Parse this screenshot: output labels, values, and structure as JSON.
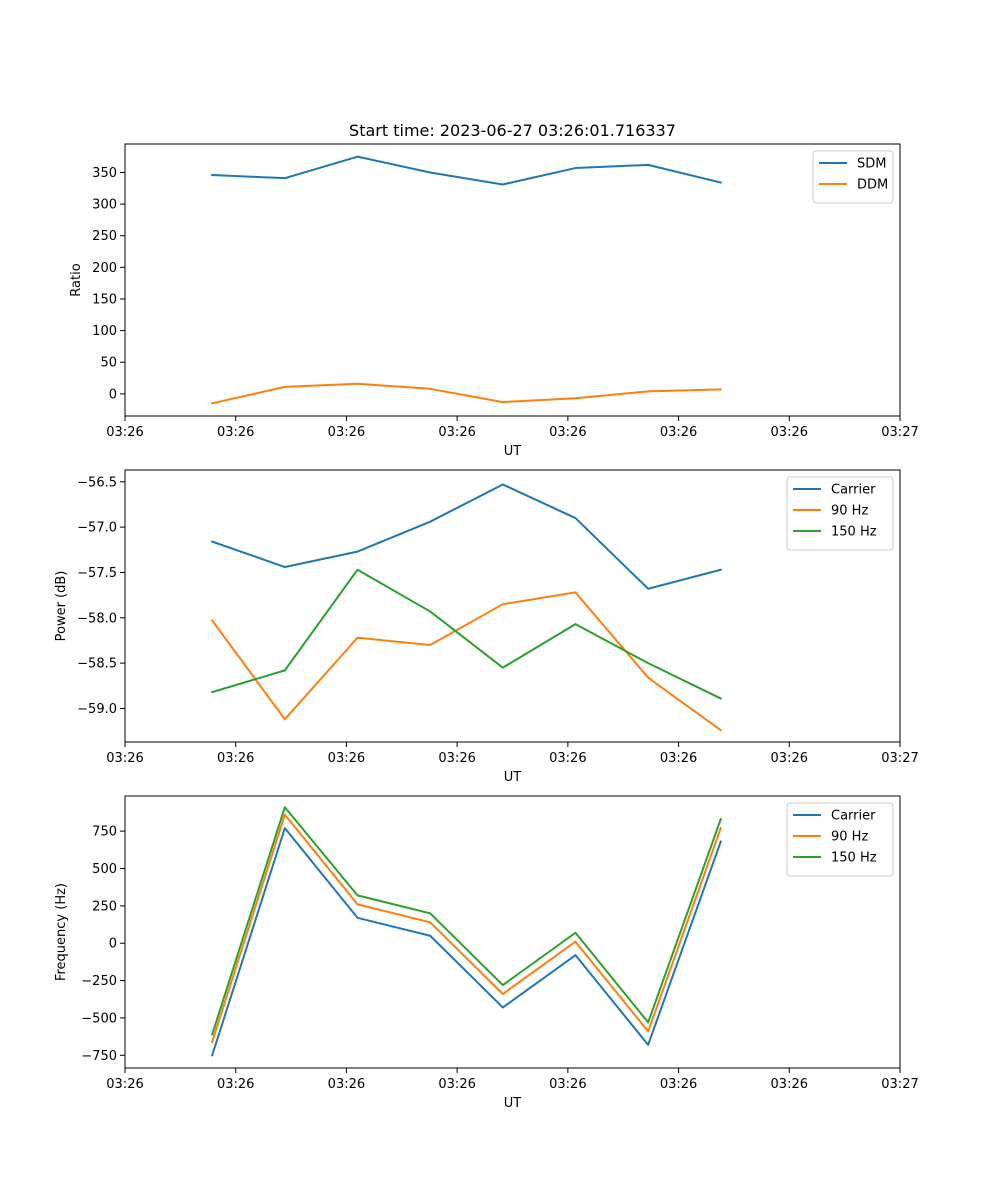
{
  "figure": {
    "title": "Start time: 2023-06-27 03:26:01.716337"
  },
  "colors": {
    "blue": "#1f77b4",
    "orange": "#ff7f0e",
    "green": "#2ca02c"
  },
  "chart_data": [
    {
      "type": "line",
      "ylabel": "Ratio",
      "xlabel": "UT",
      "legend_location": "upper right",
      "xlim": [
        0,
        16
      ],
      "x": [
        1.8,
        3.3,
        4.8,
        6.3,
        7.8,
        9.3,
        10.8,
        12.3
      ],
      "xticks": [
        0,
        2.286,
        4.571,
        6.857,
        9.143,
        11.429,
        13.714,
        16
      ],
      "xtick_labels": [
        "03:26",
        "03:26",
        "03:26",
        "03:26",
        "03:26",
        "03:26",
        "03:26",
        "03:27"
      ],
      "ylim": [
        -35,
        395
      ],
      "yticks": [
        0,
        50,
        100,
        150,
        200,
        250,
        300,
        350
      ],
      "ytick_labels": [
        "0",
        "50",
        "100",
        "150",
        "200",
        "250",
        "300",
        "350"
      ],
      "series": [
        {
          "name": "SDM",
          "color": "#1f77b4",
          "values": [
            346,
            341,
            375,
            350,
            331,
            357,
            362,
            334
          ]
        },
        {
          "name": "DDM",
          "color": "#ff7f0e",
          "values": [
            -15,
            11,
            16,
            8,
            -13,
            -7,
            4,
            7
          ]
        }
      ]
    },
    {
      "type": "line",
      "ylabel": "Power (dB)",
      "xlabel": "UT",
      "legend_location": "upper right",
      "xlim": [
        0,
        16
      ],
      "x": [
        1.8,
        3.3,
        4.8,
        6.3,
        7.8,
        9.3,
        10.8,
        12.3
      ],
      "xticks": [
        0,
        2.286,
        4.571,
        6.857,
        9.143,
        11.429,
        13.714,
        16
      ],
      "xtick_labels": [
        "03:26",
        "03:26",
        "03:26",
        "03:26",
        "03:26",
        "03:26",
        "03:26",
        "03:27"
      ],
      "ylim": [
        -59.37,
        -56.37
      ],
      "yticks": [
        -59.0,
        -58.5,
        -58.0,
        -57.5,
        -57.0,
        -56.5
      ],
      "ytick_labels": [
        "−59.0",
        "−58.5",
        "−58.0",
        "−57.5",
        "−57.0",
        "−56.5"
      ],
      "series": [
        {
          "name": "Carrier",
          "color": "#1f77b4",
          "values": [
            -57.16,
            -57.44,
            -57.27,
            -56.94,
            -56.53,
            -56.9,
            -57.68,
            -57.47
          ]
        },
        {
          "name": "90 Hz",
          "color": "#ff7f0e",
          "values": [
            -58.03,
            -59.12,
            -58.22,
            -58.3,
            -57.85,
            -57.72,
            -58.66,
            -59.24
          ]
        },
        {
          "name": "150 Hz",
          "color": "#2ca02c",
          "values": [
            -58.82,
            -58.58,
            -57.47,
            -57.93,
            -58.55,
            -58.07,
            -58.5,
            -58.89
          ]
        }
      ]
    },
    {
      "type": "line",
      "ylabel": "Frequency (Hz)",
      "xlabel": "UT",
      "legend_location": "upper right",
      "xlim": [
        0,
        16
      ],
      "x": [
        1.8,
        3.3,
        4.8,
        6.3,
        7.8,
        9.3,
        10.8,
        12.3
      ],
      "xticks": [
        0,
        2.286,
        4.571,
        6.857,
        9.143,
        11.429,
        13.714,
        16
      ],
      "xtick_labels": [
        "03:26",
        "03:26",
        "03:26",
        "03:26",
        "03:26",
        "03:26",
        "03:26",
        "03:27"
      ],
      "ylim": [
        -835,
        985
      ],
      "yticks": [
        -750,
        -500,
        -250,
        0,
        250,
        500,
        750
      ],
      "ytick_labels": [
        "−750",
        "−500",
        "−250",
        "0",
        "250",
        "500",
        "750"
      ],
      "series": [
        {
          "name": "Carrier",
          "color": "#1f77b4",
          "values": [
            -750,
            770,
            170,
            50,
            -430,
            -80,
            -680,
            680
          ]
        },
        {
          "name": "90 Hz",
          "color": "#ff7f0e",
          "values": [
            -660,
            860,
            260,
            140,
            -340,
            10,
            -590,
            770
          ]
        },
        {
          "name": "150 Hz",
          "color": "#2ca02c",
          "values": [
            -610,
            910,
            320,
            200,
            -280,
            70,
            -530,
            830
          ]
        }
      ]
    }
  ]
}
